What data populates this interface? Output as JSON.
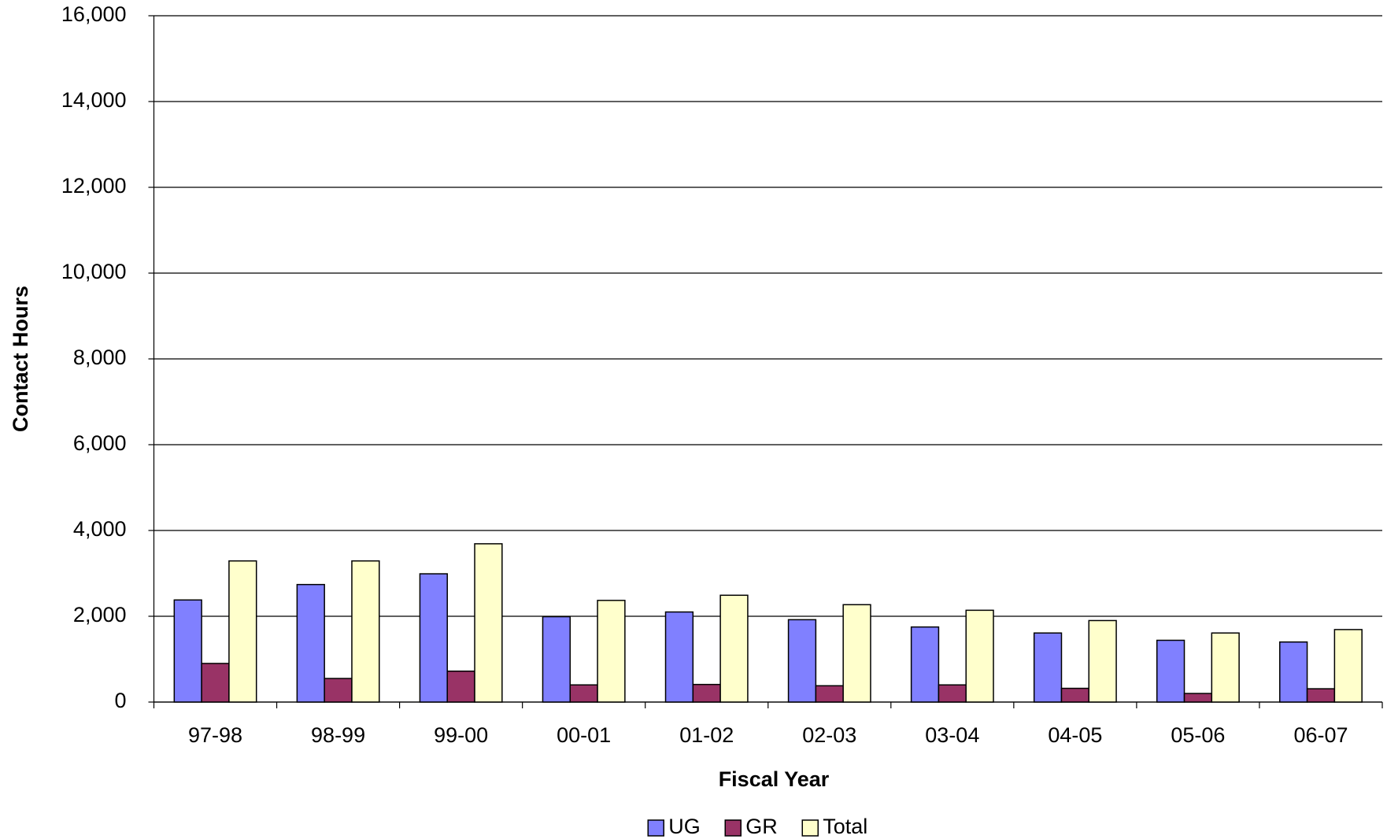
{
  "chart_data": {
    "type": "bar",
    "x_label": "Fiscal Year",
    "y_label": "Contact Hours",
    "categories": [
      "97-98",
      "98-99",
      "99-00",
      "00-01",
      "01-02",
      "02-03",
      "03-04",
      "04-05",
      "05-06",
      "06-07"
    ],
    "series": [
      {
        "name": "UG",
        "color": "#8080ff",
        "values": [
          2380,
          2740,
          2990,
          1990,
          2100,
          1920,
          1750,
          1610,
          1440,
          1400
        ]
      },
      {
        "name": "GR",
        "color": "#993366",
        "values": [
          900,
          550,
          720,
          400,
          410,
          380,
          400,
          320,
          200,
          310
        ]
      },
      {
        "name": "Total",
        "color": "#ffffcc",
        "values": [
          3290,
          3290,
          3690,
          2370,
          2490,
          2270,
          2140,
          1900,
          1610,
          1690
        ]
      }
    ],
    "ylim": [
      0,
      16000
    ],
    "yticks": [
      0,
      {
        "value": 2000,
        "label": "2,000"
      },
      {
        "value": 4000,
        "label": "4,000"
      },
      {
        "value": 6000,
        "label": "6,000"
      },
      {
        "value": 8000,
        "label": "8,000"
      },
      {
        "value": 10000,
        "label": "10,000"
      },
      {
        "value": 12000,
        "label": "12,000"
      },
      {
        "value": 14000,
        "label": "14,000"
      },
      {
        "value": 16000,
        "label": "16,000"
      }
    ],
    "grid": true,
    "legend": "bottom"
  }
}
